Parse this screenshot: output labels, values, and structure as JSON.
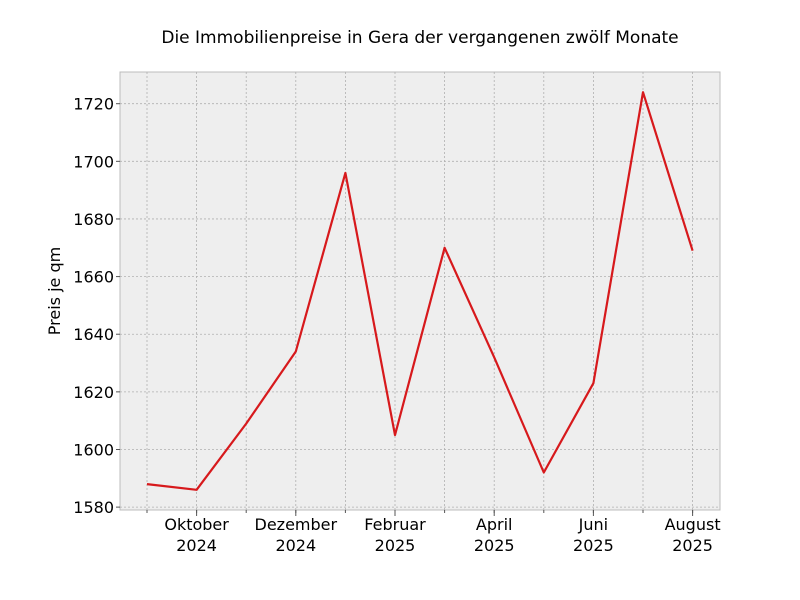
{
  "chart_data": {
    "type": "line",
    "title": "Die Immobilienpreise in Gera der vergangenen zwölf Monate",
    "xlabel": "",
    "ylabel": "Preis je qm",
    "x": [
      "2024-09",
      "2024-10",
      "2024-11",
      "2024-12",
      "2025-01",
      "2025-02",
      "2025-03",
      "2025-04",
      "2025-05",
      "2025-06",
      "2025-07",
      "2025-08"
    ],
    "x_tick_labels": [
      {
        "month": "2024-10",
        "line1": "Oktober",
        "line2": "2024"
      },
      {
        "month": "2024-12",
        "line1": "Dezember",
        "line2": "2024"
      },
      {
        "month": "2025-02",
        "line1": "Februar",
        "line2": "2025"
      },
      {
        "month": "2025-04",
        "line1": "April",
        "line2": "2025"
      },
      {
        "month": "2025-06",
        "line1": "Juni",
        "line2": "2025"
      },
      {
        "month": "2025-08",
        "line1": "August",
        "line2": "2025"
      }
    ],
    "series": [
      {
        "values": [
          1588,
          1586,
          1609,
          1634,
          1696,
          1605,
          1670,
          1632,
          1592,
          1623,
          1724,
          1669
        ],
        "color": "#d7191c"
      }
    ],
    "ylim": [
      1579,
      1731
    ],
    "yticks": [
      1580,
      1600,
      1620,
      1640,
      1660,
      1680,
      1700,
      1720
    ],
    "grid": true,
    "background": "#eeeeee"
  }
}
